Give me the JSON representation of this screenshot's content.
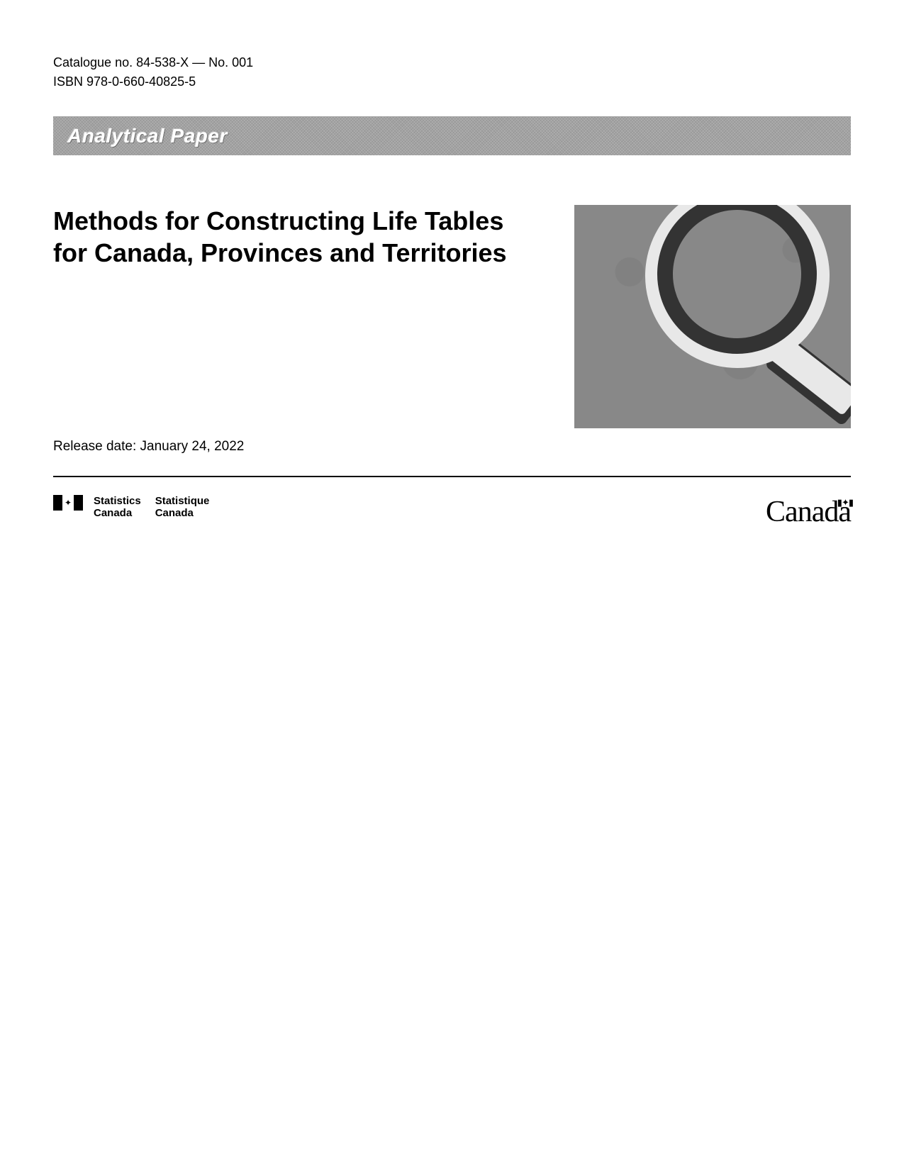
{
  "catalogue": {
    "line1": "Catalogue no. 84-538-X — No. 001",
    "line2": "ISBN 978-0-660-40825-5"
  },
  "banner": {
    "text": "Analytical Paper"
  },
  "title": {
    "line1": "Methods for Constructing Life Tables",
    "line2": "for Canada, Provinces and Territories"
  },
  "release": {
    "text": "Release date: January 24, 2022"
  },
  "footer": {
    "stats_en_line1": "Statistics",
    "stats_en_line2": "Canada",
    "stats_fr_line1": "Statistique",
    "stats_fr_line2": "Canada",
    "wordmark": "Canada"
  },
  "colors": {
    "banner_bg": "#999999",
    "banner_text": "#ffffff",
    "graphic_bg": "#888888",
    "text": "#000000",
    "divider": "#000000"
  }
}
